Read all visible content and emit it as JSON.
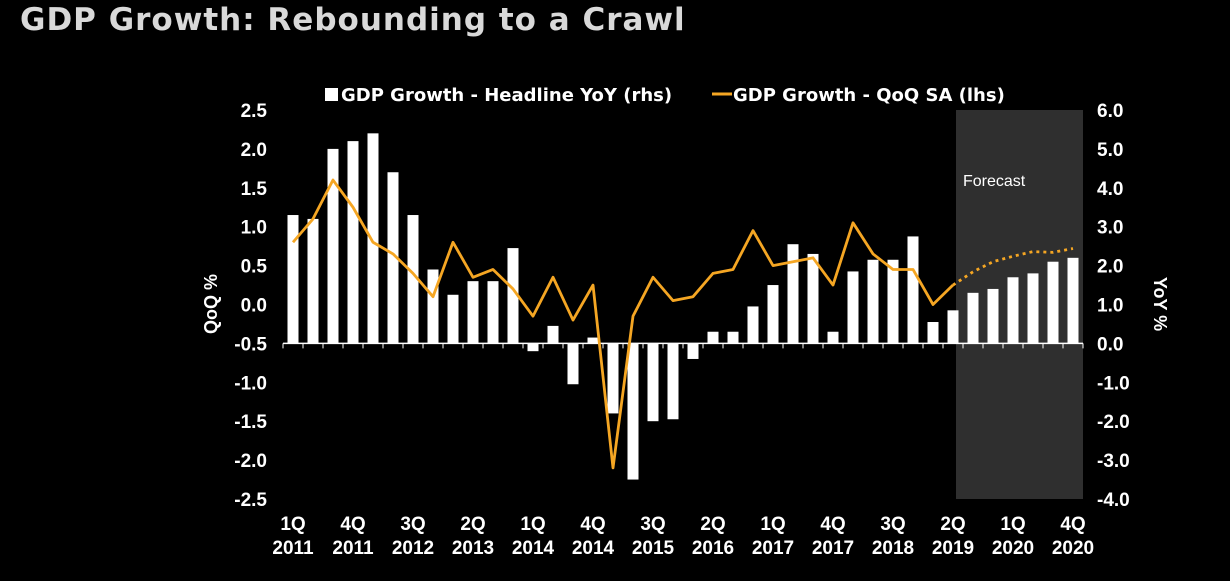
{
  "title": "GDP Growth: Rebounding to a Crawl",
  "colors": {
    "background": "#000000",
    "bars": "#ffffff",
    "line": "#f5a623",
    "forecast_shade": "#2f2f2f"
  },
  "chart_data": {
    "type": "bar+line",
    "title": "GDP Growth: Rebounding to a Crawl",
    "legend": {
      "position": "top",
      "entries": [
        "GDP Growth - Headline YoY (rhs)",
        "GDP Growth - QoQ SA (lhs)"
      ]
    },
    "forecast_label": "Forecast",
    "forecast_start_index": 34,
    "ylabel_left": "QoQ %",
    "ylabel_right": "YoY %",
    "ylim_left": [
      -2.5,
      2.5
    ],
    "ylim_right": [
      -4.0,
      6.0
    ],
    "yticks_left": [
      "2.5",
      "2.0",
      "1.5",
      "1.0",
      "0.5",
      "0.0",
      "-0.5",
      "-1.0",
      "-1.5",
      "-2.0",
      "-2.5"
    ],
    "yticks_right": [
      "6.0",
      "5.0",
      "4.0",
      "3.0",
      "2.0",
      "1.0",
      "0.0",
      "-1.0",
      "-2.0",
      "-3.0",
      "-4.0"
    ],
    "xtick_labels": [
      {
        "q": "1Q",
        "y": "2011",
        "i": 0
      },
      {
        "q": "4Q",
        "y": "2011",
        "i": 3
      },
      {
        "q": "3Q",
        "y": "2012",
        "i": 6
      },
      {
        "q": "2Q",
        "y": "2013",
        "i": 9
      },
      {
        "q": "1Q",
        "y": "2014",
        "i": 12
      },
      {
        "q": "4Q",
        "y": "2014",
        "i": 15
      },
      {
        "q": "3Q",
        "y": "2015",
        "i": 18
      },
      {
        "q": "2Q",
        "y": "2016",
        "i": 21
      },
      {
        "q": "1Q",
        "y": "2017",
        "i": 24
      },
      {
        "q": "4Q",
        "y": "2017",
        "i": 27
      },
      {
        "q": "3Q",
        "y": "2018",
        "i": 30
      },
      {
        "q": "2Q",
        "y": "2019",
        "i": 33
      },
      {
        "q": "1Q",
        "y": "2020",
        "i": 36
      },
      {
        "q": "4Q",
        "y": "2020",
        "i": 39
      }
    ],
    "x": [
      "1Q2011",
      "2Q2011",
      "3Q2011",
      "4Q2011",
      "1Q2012",
      "2Q2012",
      "3Q2012",
      "4Q2012",
      "1Q2013",
      "2Q2013",
      "3Q2013",
      "4Q2013",
      "1Q2014",
      "2Q2014",
      "3Q2014",
      "4Q2014",
      "1Q2015",
      "2Q2015",
      "3Q2015",
      "4Q2015",
      "1Q2016",
      "2Q2016",
      "3Q2016",
      "4Q2016",
      "1Q2017",
      "2Q2017",
      "3Q2017",
      "4Q2017",
      "1Q2018",
      "2Q2018",
      "3Q2018",
      "4Q2018",
      "1Q2019",
      "2Q2019",
      "3Q2019",
      "4Q2019",
      "1Q2020",
      "2Q2020",
      "3Q2020",
      "4Q2020"
    ],
    "series": [
      {
        "name": "GDP Growth - Headline YoY (rhs)",
        "type": "bar",
        "axis": "right",
        "values": [
          3.3,
          3.2,
          5.0,
          5.2,
          5.4,
          4.4,
          3.3,
          1.9,
          1.25,
          1.6,
          1.6,
          2.45,
          -0.2,
          0.45,
          -1.05,
          0.15,
          -1.8,
          -3.5,
          -2.0,
          -1.95,
          -0.4,
          0.3,
          0.3,
          0.95,
          1.5,
          2.55,
          2.3,
          0.3,
          1.85,
          2.15,
          2.15,
          2.75,
          0.55,
          0.85,
          1.3,
          1.4,
          1.7,
          1.8,
          2.1,
          2.2
        ]
      },
      {
        "name": "GDP Growth - QoQ SA (lhs)",
        "type": "line",
        "axis": "left",
        "values": [
          0.8,
          1.1,
          1.6,
          1.25,
          0.8,
          0.65,
          0.4,
          0.1,
          0.8,
          0.35,
          0.45,
          0.2,
          -0.15,
          0.35,
          -0.2,
          0.25,
          -2.1,
          -0.15,
          0.35,
          0.05,
          0.1,
          0.4,
          0.45,
          0.95,
          0.5,
          0.55,
          0.6,
          0.25,
          1.05,
          0.65,
          0.45,
          0.45,
          0.0,
          0.25,
          0.42,
          0.55,
          0.62,
          0.68,
          0.67,
          0.72
        ]
      }
    ]
  }
}
